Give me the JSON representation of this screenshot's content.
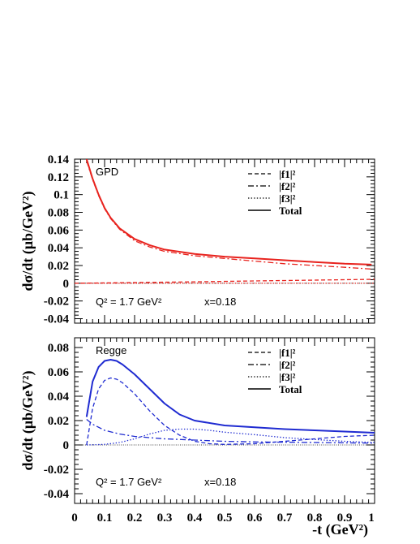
{
  "chart_data": [
    {
      "type": "line",
      "panel_label": "GPD",
      "ylabel": "dσ/dt (μb/GeV²)",
      "ylim": [
        -0.045,
        0.14
      ],
      "xlim": [
        0,
        1
      ],
      "yticks": [
        -0.04,
        -0.02,
        0,
        0.02,
        0.04,
        0.06,
        0.08,
        0.1,
        0.12,
        0.14
      ],
      "yticklabels": [
        "-0.04",
        "-0.02",
        "0",
        "0.02",
        "0.04",
        "0.06",
        "0.08",
        "0.1",
        "0.12",
        "0.14"
      ],
      "annotations": [
        "Q² = 1.7 GeV²",
        "x=0.18"
      ],
      "legend": {
        "placement": "top-right",
        "entries": [
          "|f1|²",
          "|f2|²",
          "|f3|²",
          "Total"
        ]
      },
      "color": "#e8231e",
      "series": [
        {
          "name": "|f1|²",
          "style": "dashed",
          "x": [
            0.0,
            0.2,
            0.4,
            0.6,
            0.8,
            1.0
          ],
          "y": [
            0.0,
            0.0008,
            0.0016,
            0.0026,
            0.0035,
            0.0045
          ]
        },
        {
          "name": "|f2|²",
          "style": "dashdot",
          "x": [
            0.04,
            0.06,
            0.08,
            0.1,
            0.12,
            0.15,
            0.2,
            0.25,
            0.3,
            0.4,
            0.5,
            0.6,
            0.7,
            0.8,
            0.9,
            0.99
          ],
          "y": [
            0.138,
            0.117,
            0.099,
            0.084,
            0.073,
            0.061,
            0.048,
            0.041,
            0.036,
            0.031,
            0.028,
            0.025,
            0.022,
            0.02,
            0.018,
            0.016
          ]
        },
        {
          "name": "|f3|²",
          "style": "dotted",
          "x": [
            0.0,
            0.5,
            1.0
          ],
          "y": [
            0.0,
            0.0,
            0.0
          ]
        },
        {
          "name": "Total",
          "style": "solid",
          "x": [
            0.04,
            0.06,
            0.08,
            0.1,
            0.12,
            0.15,
            0.2,
            0.25,
            0.3,
            0.4,
            0.5,
            0.6,
            0.7,
            0.8,
            0.9,
            0.99
          ],
          "y": [
            0.14,
            0.118,
            0.1,
            0.085,
            0.074,
            0.062,
            0.05,
            0.043,
            0.038,
            0.033,
            0.03,
            0.028,
            0.026,
            0.024,
            0.022,
            0.021
          ]
        }
      ]
    },
    {
      "type": "line",
      "panel_label": "Regge",
      "ylabel": "dσ/dt (μb/GeV²)",
      "xlabel": "-t (GeV²)",
      "ylim": [
        -0.048,
        0.088
      ],
      "xlim": [
        0,
        1
      ],
      "xticks": [
        0,
        0.1,
        0.2,
        0.3,
        0.4,
        0.5,
        0.6,
        0.7,
        0.8,
        0.9,
        1
      ],
      "xticklabels": [
        "0",
        "0.1",
        "0.2",
        "0.3",
        "0.4",
        "0.5",
        "0.6",
        "0.7",
        "0.8",
        "0.9",
        "1"
      ],
      "yticks": [
        -0.04,
        -0.02,
        0,
        0.02,
        0.04,
        0.06,
        0.08
      ],
      "yticklabels": [
        "-0.04",
        "-0.02",
        "0",
        "0.02",
        "0.04",
        "0.06",
        "0.08"
      ],
      "annotations": [
        "Q² = 1.7 GeV²",
        "x=0.18"
      ],
      "legend": {
        "placement": "top-right",
        "entries": [
          "|f1|²",
          "|f2|²",
          "|f3|²",
          "Total"
        ]
      },
      "color": "#1f2bd1",
      "series": [
        {
          "name": "|f1|²",
          "style": "dashed",
          "x": [
            0.04,
            0.06,
            0.08,
            0.1,
            0.12,
            0.14,
            0.16,
            0.2,
            0.25,
            0.3,
            0.35,
            0.4,
            0.45,
            0.5,
            0.6,
            0.7,
            0.8,
            0.9,
            1.0
          ],
          "y": [
            0.0,
            0.03,
            0.046,
            0.053,
            0.055,
            0.054,
            0.051,
            0.042,
            0.028,
            0.016,
            0.008,
            0.003,
            0.001,
            0.0005,
            0.001,
            0.003,
            0.005,
            0.007,
            0.008
          ]
        },
        {
          "name": "|f2|²",
          "style": "dashdot",
          "x": [
            0.04,
            0.06,
            0.1,
            0.15,
            0.2,
            0.3,
            0.4,
            0.5,
            0.6,
            0.8,
            1.0
          ],
          "y": [
            0.021,
            0.017,
            0.012,
            0.009,
            0.007,
            0.005,
            0.004,
            0.003,
            0.0025,
            0.002,
            0.0015
          ]
        },
        {
          "name": "|f3|²",
          "style": "dotted",
          "x": [
            0.04,
            0.1,
            0.15,
            0.2,
            0.25,
            0.3,
            0.35,
            0.4,
            0.45,
            0.5,
            0.6,
            0.7,
            0.8,
            0.9,
            1.0
          ],
          "y": [
            0.0,
            0.0005,
            0.002,
            0.005,
            0.009,
            0.012,
            0.013,
            0.013,
            0.012,
            0.0105,
            0.0085,
            0.006,
            0.0045,
            0.003,
            0.002
          ]
        },
        {
          "name": "Total",
          "style": "solid",
          "x": [
            0.04,
            0.06,
            0.08,
            0.1,
            0.12,
            0.14,
            0.16,
            0.2,
            0.25,
            0.3,
            0.35,
            0.4,
            0.5,
            0.6,
            0.7,
            0.8,
            0.9,
            1.0
          ],
          "y": [
            0.023,
            0.052,
            0.064,
            0.069,
            0.07,
            0.069,
            0.066,
            0.058,
            0.046,
            0.034,
            0.025,
            0.02,
            0.016,
            0.0145,
            0.013,
            0.012,
            0.011,
            0.01
          ]
        }
      ]
    }
  ]
}
